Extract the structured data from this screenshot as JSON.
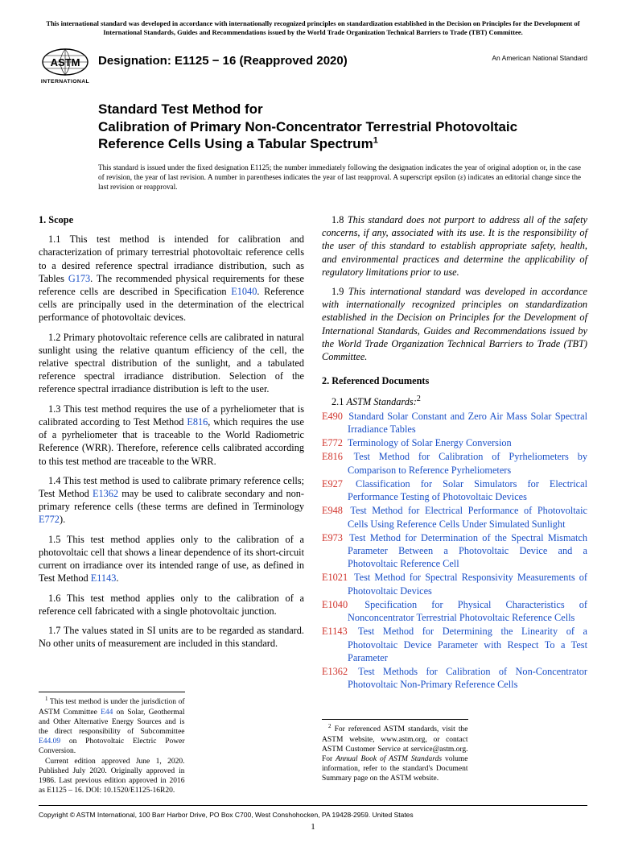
{
  "top_note": "This international standard was developed in accordance with internationally recognized principles on standardization established in the Decision on Principles for the Development of International Standards, Guides and Recommendations issued by the World Trade Organization Technical Barriers to Trade (TBT) Committee.",
  "logo_label": "INTERNATIONAL",
  "designation": "Designation: E1125 − 16 (Reapproved 2020)",
  "national_std": "An American National Standard",
  "title_line1": "Standard Test Method for",
  "title_line2": "Calibration of Primary Non-Concentrator Terrestrial Photovoltaic Reference Cells Using a Tabular Spectrum",
  "title_sup": "1",
  "issuance": "This standard is issued under the fixed designation E1125; the number immediately following the designation indicates the year of original adoption or, in the case of revision, the year of last revision. A number in parentheses indicates the year of last reapproval. A superscript epsilon (ε) indicates an editorial change since the last revision or reapproval.",
  "scope_heading": "1. Scope",
  "p11a": "1.1 This test method is intended for calibration and characterization of primary terrestrial photovoltaic reference cells to a desired reference spectral irradiance distribution, such as Tables ",
  "p11_link1": "G173",
  "p11b": ". The recommended physical requirements for these reference cells are described in Specification ",
  "p11_link2": "E1040",
  "p11c": ". Reference cells are principally used in the determination of the electrical performance of photovoltaic devices.",
  "p12": "1.2 Primary photovoltaic reference cells are calibrated in natural sunlight using the relative quantum efficiency of the cell, the relative spectral distribution of the sunlight, and a tabulated reference spectral irradiance distribution. Selection of the reference spectral irradiance distribution is left to the user.",
  "p13a": "1.3 This test method requires the use of a pyrheliometer that is calibrated according to Test Method ",
  "p13_link": "E816",
  "p13b": ", which requires the use of a pyrheliometer that is traceable to the World Radiometric Reference (WRR). Therefore, reference cells calibrated according to this test method are traceable to the WRR.",
  "p14a": "1.4 This test method is used to calibrate primary reference cells; Test Method ",
  "p14_link1": "E1362",
  "p14b": " may be used to calibrate secondary and non-primary reference cells (these terms are defined in Terminology ",
  "p14_link2": "E772",
  "p14c": ").",
  "p15a": "1.5 This test method applies only to the calibration of a photovoltaic cell that shows a linear dependence of its short-circuit current on irradiance over its intended range of use, as defined in Test Method ",
  "p15_link": "E1143",
  "p15b": ".",
  "p16": "1.6 This test method applies only to the calibration of a reference cell fabricated with a single photovoltaic junction.",
  "p17": "1.7 The values stated in SI units are to be regarded as standard. No other units of measurement are included in this standard.",
  "p18": "1.8 This standard does not purport to address all of the safety concerns, if any, associated with its use. It is the responsibility of the user of this standard to establish appropriate safety, health, and environmental practices and determine the applicability of regulatory limitations prior to use.",
  "p19": "1.9 This international standard was developed in accordance with internationally recognized principles on standardization established in the Decision on Principles for the Development of International Standards, Guides and Recommendations issued by the World Trade Organization Technical Barriers to Trade (TBT) Committee.",
  "ref_heading": "2. Referenced Documents",
  "ref_subhead_num": "2.1 ",
  "ref_subhead_label": "ASTM Standards:",
  "ref_subhead_sup": "2",
  "refs": [
    {
      "code": "E490",
      "title": "Standard Solar Constant and Zero Air Mass Solar Spectral Irradiance Tables"
    },
    {
      "code": "E772",
      "title": "Terminology of Solar Energy Conversion"
    },
    {
      "code": "E816",
      "title": "Test Method for Calibration of Pyrheliometers by Comparison to Reference Pyrheliometers"
    },
    {
      "code": "E927",
      "title": "Classification for Solar Simulators for Electrical Performance Testing of Photovoltaic Devices"
    },
    {
      "code": "E948",
      "title": "Test Method for Electrical Performance of Photovoltaic Cells Using Reference Cells Under Simulated Sunlight"
    },
    {
      "code": "E973",
      "title": "Test Method for Determination of the Spectral Mismatch Parameter Between a Photovoltaic Device and a Photovoltaic Reference Cell"
    },
    {
      "code": "E1021",
      "title": "Test Method for Spectral Responsivity Measurements of Photovoltaic Devices"
    },
    {
      "code": "E1040",
      "title": "Specification for Physical Characteristics of Nonconcentrator Terrestrial Photovoltaic Reference Cells"
    },
    {
      "code": "E1143",
      "title": "Test Method for Determining the Linearity of a Photovoltaic Device Parameter with Respect To a Test Parameter"
    },
    {
      "code": "E1362",
      "title": "Test Methods for Calibration of Non-Concentrator Photovoltaic Non-Primary Reference Cells"
    }
  ],
  "fn1a": " This test method is under the jurisdiction of ASTM Committee ",
  "fn1_link1": "E44",
  "fn1b": " on Solar, Geothermal and Other Alternative Energy Sources and is the direct responsibility of Subcommittee ",
  "fn1_link2": "E44.09",
  "fn1c": " on Photovoltaic Electric Power Conversion.",
  "fn1d": "Current edition approved June 1, 2020. Published July 2020. Originally approved in 1986. Last previous edition approved in 2016 as E1125 – 16. DOI: 10.1520/E1125-16R20.",
  "fn2a": " For referenced ASTM standards, visit the ASTM website, www.astm.org, or contact ASTM Customer Service at service@astm.org. For ",
  "fn2_italic": "Annual Book of ASTM Standards",
  "fn2b": " volume information, refer to the standard's Document Summary page on the ASTM website.",
  "copyright": "Copyright © ASTM International, 100 Barr Harbor Drive, PO Box C700, West Conshohocken, PA 19428-2959. United States",
  "page_number": "1",
  "colors": {
    "link_blue": "#1a4fc7",
    "code_red": "#d0342c",
    "text": "#000000"
  }
}
